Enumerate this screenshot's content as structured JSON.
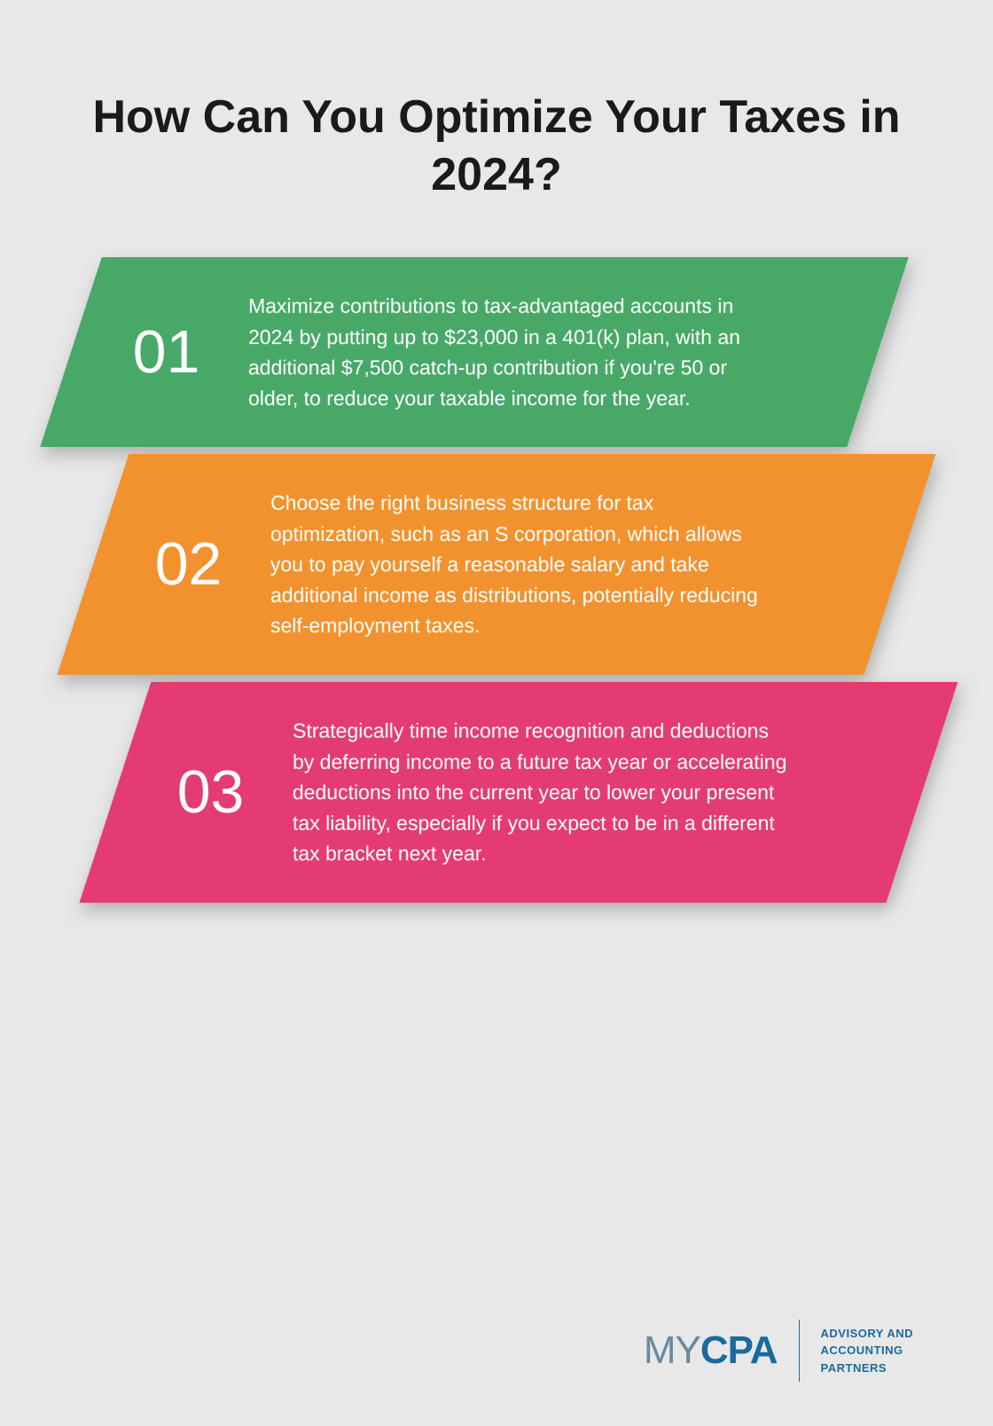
{
  "title": "How Can You Optimize Your Taxes in 2024?",
  "background_color": "#e8e8e8",
  "title_color": "#1a1a1a",
  "title_fontsize": 52,
  "cards": [
    {
      "number": "01",
      "text": "Maximize contributions to tax-advantaged accounts in 2024 by putting up to $23,000 in a 401(k) plan, with an additional $7,500 catch-up contribution if you're 50 or older, to reduce your taxable income for the year.",
      "background_color": "#48a868",
      "text_color": "#ffffff"
    },
    {
      "number": "02",
      "text": "Choose the right business structure for tax optimization, such as an S corporation, which allows you to pay yourself a reasonable salary and take additional income as distributions, potentially reducing self-employment taxes.",
      "background_color": "#f2922e",
      "text_color": "#ffffff"
    },
    {
      "number": "03",
      "text": "Strategically time income recognition and deductions by deferring income to a future tax year or accelerating deductions into the current year to lower your present tax liability, especially if you expect to be in a different tax bracket next year.",
      "background_color": "#e43b72",
      "text_color": "#ffffff"
    }
  ],
  "card_number_fontsize": 68,
  "card_text_fontsize": 23,
  "card_skew_degrees": -18,
  "footer": {
    "logo_my": "MY",
    "logo_cpa": "CPA",
    "logo_my_color": "#6a8a9e",
    "logo_cpa_color": "#1a6a9e",
    "tagline_line1": "ADVISORY AND",
    "tagline_line2": "ACCOUNTING",
    "tagline_line3": "PARTNERS",
    "tagline_color": "#1a6a9e"
  }
}
